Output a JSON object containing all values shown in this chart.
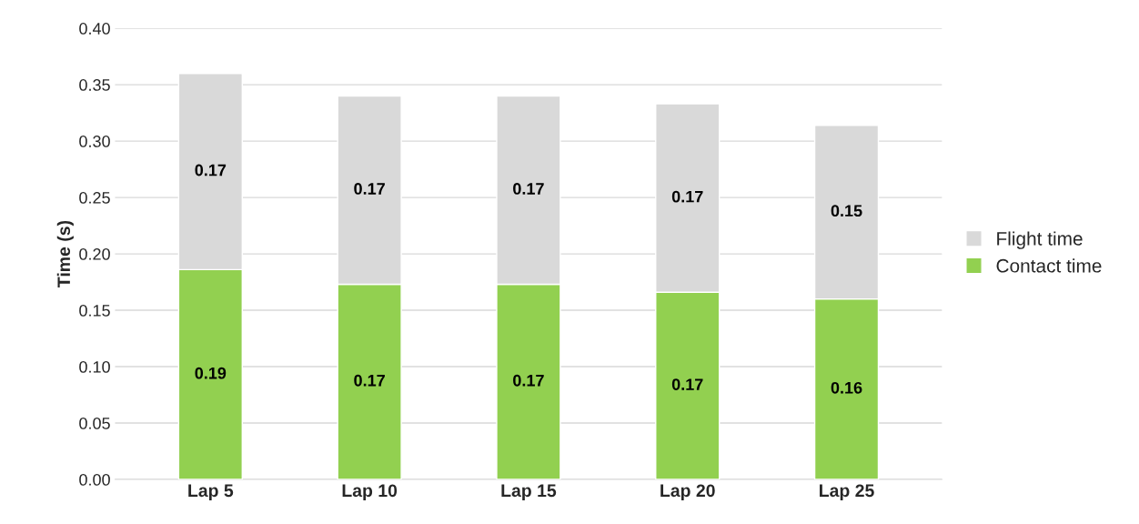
{
  "chart_data": {
    "type": "bar",
    "stacked": true,
    "ylabel": "Time (s)",
    "categories": [
      "Lap 5",
      "Lap 10",
      "Lap 15",
      "Lap 20",
      "Lap 25"
    ],
    "series": [
      {
        "name": "Contact time",
        "color": "#92d050",
        "values": [
          0.186,
          0.173,
          0.173,
          0.166,
          0.16
        ],
        "value_labels": [
          "0.19",
          "0.17",
          "0.17",
          "0.17",
          "0.16"
        ]
      },
      {
        "name": "Flight time",
        "color": "#d9d9d9",
        "values": [
          0.174,
          0.167,
          0.167,
          0.167,
          0.154
        ],
        "value_labels": [
          "0.17",
          "0.17",
          "0.17",
          "0.17",
          "0.15"
        ]
      }
    ],
    "ylim": [
      0,
      0.4
    ],
    "yticks": [
      {
        "value": 0,
        "label": "0.00"
      },
      {
        "value": 0.05,
        "label": "0.05"
      },
      {
        "value": 0.1,
        "label": "0.10"
      },
      {
        "value": 0.15,
        "label": "0.15"
      },
      {
        "value": 0.2,
        "label": "0.20"
      },
      {
        "value": 0.25,
        "label": "0.25"
      },
      {
        "value": 0.3,
        "label": "0.30"
      },
      {
        "value": 0.35,
        "label": "0.35"
      },
      {
        "value": 0.4,
        "label": "0.40"
      }
    ],
    "grid": "y",
    "legend": "right"
  }
}
